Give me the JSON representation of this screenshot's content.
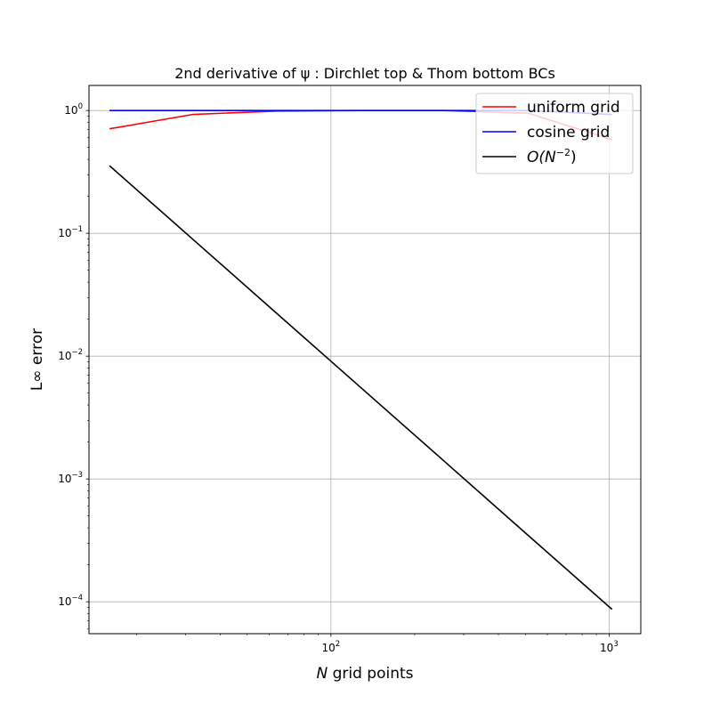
{
  "chart_data": {
    "type": "line",
    "title": "2nd derivative of ψ : Dirchlet top & Thom bottom BCs",
    "xlabel": "N grid points",
    "ylabel": "L∞ error",
    "xscale": "log",
    "yscale": "log",
    "xlim": [
      13.5,
      1300
    ],
    "ylim": [
      5.5e-05,
      1.6
    ],
    "grid": true,
    "legend_position": "top-right",
    "x_ticks": [
      {
        "value": 100,
        "base": "10",
        "exp": "2"
      },
      {
        "value": 1000,
        "base": "10",
        "exp": "3"
      }
    ],
    "y_ticks": [
      {
        "value": 0.0001,
        "base": "10",
        "exp": "−4"
      },
      {
        "value": 0.001,
        "base": "10",
        "exp": "−3"
      },
      {
        "value": 0.01,
        "base": "10",
        "exp": "−2"
      },
      {
        "value": 0.1,
        "base": "10",
        "exp": "−1"
      },
      {
        "value": 1,
        "base": "10",
        "exp": "0"
      }
    ],
    "series": [
      {
        "name": "uniform grid",
        "color": "#ff0000",
        "x": [
          16,
          32,
          64,
          128,
          256,
          512,
          1024
        ],
        "y": [
          0.71,
          0.93,
          0.99,
          1.0,
          1.0,
          0.95,
          0.58
        ]
      },
      {
        "name": "cosine grid",
        "color": "#0000ff",
        "x": [
          16,
          32,
          64,
          128,
          256,
          512,
          1024
        ],
        "y": [
          1.0,
          1.0,
          1.0,
          1.0,
          1.0,
          1.0,
          0.93
        ]
      },
      {
        "name": "O(N−2)",
        "color": "#000000",
        "x": [
          16,
          32,
          64,
          128,
          256,
          512,
          1024
        ],
        "y": [
          0.355,
          0.0888,
          0.0222,
          0.00555,
          0.00139,
          0.000347,
          8.68e-05
        ]
      }
    ],
    "legend": [
      {
        "label": "uniform grid",
        "color": "#ff0000"
      },
      {
        "label": "cosine grid",
        "color": "#0000ff"
      },
      {
        "prefix": "O(N",
        "sup": "−2",
        "suffix": ")",
        "color": "#000000"
      }
    ]
  }
}
